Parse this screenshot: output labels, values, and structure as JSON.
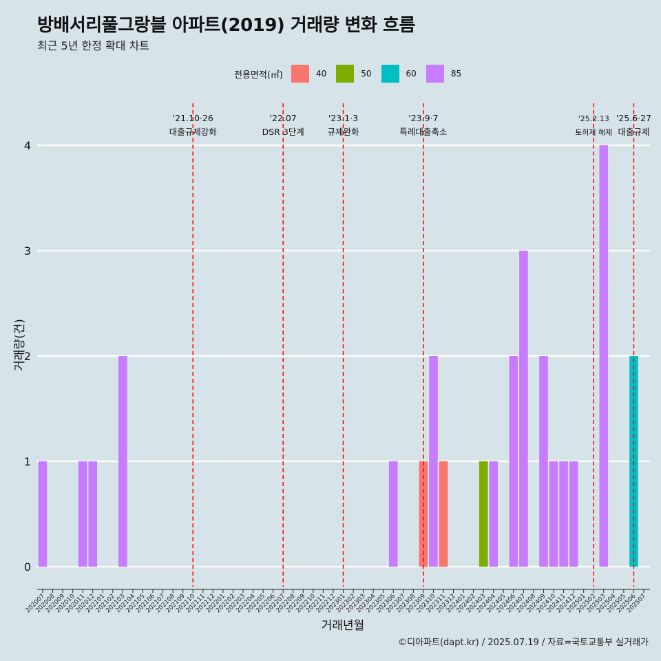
{
  "title": "방배서리풀그랑블 아파트(2019) 거래량 변화 흐름",
  "subtitle": "최근 5년 한정 확대 차트",
  "legend": {
    "title": "전용면적(㎡)",
    "items": [
      {
        "label": "40",
        "color": "#F8766D"
      },
      {
        "label": "50",
        "color": "#7CAE00"
      },
      {
        "label": "60",
        "color": "#00BFC4"
      },
      {
        "label": "85",
        "color": "#C77CFF"
      }
    ]
  },
  "caption": "©디아파트(dapt.kr) / 2025.07.19 / 자료=국토교통부 실거래가",
  "chart_data": {
    "type": "bar",
    "stacked": true,
    "xlabel": "거래년월",
    "ylabel": "거래량(건)",
    "ylim": [
      0,
      4
    ],
    "yticks": [
      0,
      1,
      2,
      3,
      4
    ],
    "grid": "horizontal",
    "legend_position": "top",
    "categories": [
      "202007",
      "202008",
      "202009",
      "202010",
      "202011",
      "202012",
      "202101",
      "202102",
      "202103",
      "202104",
      "202105",
      "202106",
      "202107",
      "202108",
      "202109",
      "202110",
      "202111",
      "202112",
      "202201",
      "202202",
      "202203",
      "202204",
      "202205",
      "202206",
      "202207",
      "202208",
      "202209",
      "202210",
      "202211",
      "202212",
      "202301",
      "202302",
      "202303",
      "202304",
      "202305",
      "202306",
      "202307",
      "202308",
      "202309",
      "202310",
      "202311",
      "202312",
      "202401",
      "202402",
      "202403",
      "202404",
      "202405",
      "202406",
      "202407",
      "202408",
      "202409",
      "202410",
      "202411",
      "202412",
      "202501",
      "202502",
      "202503",
      "202504",
      "202505",
      "202506",
      "202507"
    ],
    "series": [
      {
        "name": "40",
        "color": "#F8766D",
        "values": {
          "202309": 1,
          "202311": 1
        }
      },
      {
        "name": "50",
        "color": "#7CAE00",
        "values": {
          "202403": 1
        }
      },
      {
        "name": "60",
        "color": "#00BFC4",
        "values": {
          "202506": 2
        }
      },
      {
        "name": "85",
        "color": "#C77CFF",
        "values": {
          "202007": 1,
          "202011": 1,
          "202012": 1,
          "202103": 2,
          "202306": 1,
          "202310": 2,
          "202404": 1,
          "202406": 2,
          "202407": 3,
          "202409": 2,
          "202410": 1,
          "202411": 1,
          "202412": 1,
          "202503": 4
        }
      }
    ],
    "annotations": [
      {
        "month": "202110",
        "date": "'21.10·26",
        "label": "대출규제강화"
      },
      {
        "month": "202207",
        "date": "'22.07",
        "label": "DSR 3단계"
      },
      {
        "month": "202301",
        "date": "'23.1·3",
        "label": "규제완화"
      },
      {
        "month": "202309",
        "date": "'23.9·7",
        "label": "특례대출축소"
      },
      {
        "month": "202502",
        "date": "'25.2.13",
        "label": "토허제 해제"
      },
      {
        "month": "202506",
        "date": "'25.6·27",
        "label": "대출규제"
      }
    ]
  }
}
